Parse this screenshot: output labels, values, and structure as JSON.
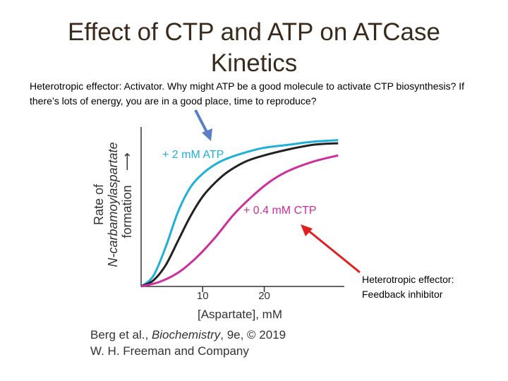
{
  "slide": {
    "title": "Effect of CTP and ATP on ATCase Kinetics",
    "subtitle": "Heterotropic effector: Activator. Why might ATP be a good molecule to activate CTP biosynthesis? If there’s lots of energy, you are in a good place, time to reproduce?",
    "annotation_inhibitor": "Heterotropic effector: Feedback inhibitor",
    "credit_line1_prefix": "Berg et al., ",
    "credit_line1_italic": "Biochemistry",
    "credit_line1_suffix": ", 9e, © 2019",
    "credit_line2": "W. H. Freeman and Company"
  },
  "chart_data": {
    "type": "line",
    "title": "",
    "xlabel": "[Aspartate], mM",
    "ylabel_lines": [
      "Rate of",
      "N-carbamoylaspartate",
      "formation"
    ],
    "ylabel_arrow": "⟶",
    "xticks": [
      10,
      20
    ],
    "xlim": [
      0,
      33
    ],
    "ylim": [
      0,
      1
    ],
    "grid": false,
    "series": [
      {
        "name": "+ 2 mM ATP",
        "color": "#1eb0d8",
        "x": [
          0,
          2,
          4,
          6,
          8,
          10,
          12,
          14,
          17,
          20,
          24,
          28,
          32
        ],
        "y": [
          0.0,
          0.07,
          0.26,
          0.49,
          0.65,
          0.74,
          0.8,
          0.84,
          0.88,
          0.91,
          0.93,
          0.95,
          0.96
        ]
      },
      {
        "name": "",
        "color": "#222222",
        "x": [
          0,
          2,
          4,
          6,
          8,
          10,
          12,
          14,
          17,
          20,
          24,
          28,
          32
        ],
        "y": [
          0.0,
          0.04,
          0.14,
          0.3,
          0.46,
          0.59,
          0.68,
          0.75,
          0.82,
          0.86,
          0.9,
          0.93,
          0.94
        ]
      },
      {
        "name": "+ 0.4 mM CTP",
        "color": "#cc2e9c",
        "x": [
          0,
          3,
          6,
          9,
          12,
          15,
          18,
          21,
          24,
          28,
          32
        ],
        "y": [
          0.0,
          0.03,
          0.09,
          0.19,
          0.32,
          0.47,
          0.59,
          0.69,
          0.76,
          0.82,
          0.86
        ]
      }
    ]
  },
  "arrows": {
    "blue_color": "#5b7fc4",
    "red_color": "#e02020"
  }
}
